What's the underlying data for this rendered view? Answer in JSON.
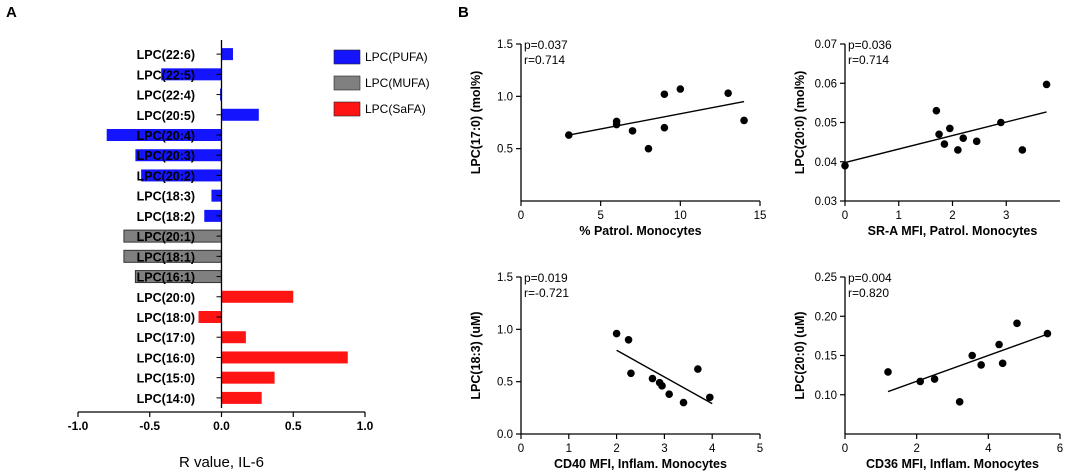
{
  "panels": {
    "a_label": "A",
    "b_label": "B"
  },
  "colors": {
    "pufa": "#1414ff",
    "mufa": "#808080",
    "safa": "#ff1414",
    "axis": "#000000"
  },
  "chart_data": [
    {
      "id": "A",
      "type": "bar",
      "orientation": "horizontal",
      "xlabel": "R value, IL-6",
      "xlim": [
        -1.0,
        1.0
      ],
      "xticks": [
        -1.0,
        -0.5,
        0.0,
        0.5,
        1.0
      ],
      "xtick_labels": [
        "-1.0",
        "-0.5",
        "0.0",
        "0.5",
        "1.0"
      ],
      "legend": [
        {
          "label": "LPC(PUFA)",
          "group": "pufa"
        },
        {
          "label": "LPC(MUFA)",
          "group": "mufa"
        },
        {
          "label": "LPC(SaFA)",
          "group": "safa"
        }
      ],
      "categories": [
        "LPC(22:6)",
        "LPC(22:5)",
        "LPC(22:4)",
        "LPC(20:5)",
        "LPC(20:4)",
        "LPC(20:3)",
        "LPC(20:2)",
        "LPC(18:3)",
        "LPC(18:2)",
        "LPC(20:1)",
        "LPC(18:1)",
        "LPC(16:1)",
        "LPC(20:0)",
        "LPC(18:0)",
        "LPC(17:0)",
        "LPC(16:0)",
        "LPC(15:0)",
        "LPC(14:0)"
      ],
      "values": [
        0.08,
        -0.42,
        -0.01,
        0.26,
        -0.8,
        -0.6,
        -0.56,
        -0.07,
        -0.12,
        -0.68,
        -0.68,
        -0.6,
        0.5,
        -0.16,
        0.17,
        0.88,
        0.37,
        0.28
      ],
      "groups": [
        "pufa",
        "pufa",
        "pufa",
        "pufa",
        "pufa",
        "pufa",
        "pufa",
        "pufa",
        "pufa",
        "mufa",
        "mufa",
        "mufa",
        "safa",
        "safa",
        "safa",
        "safa",
        "safa",
        "safa"
      ]
    },
    {
      "id": "B1",
      "type": "scatter",
      "xlabel": "% Patrol. Monocytes",
      "ylabel": "LPC(17:0) (mol%)",
      "xlim": [
        0,
        15
      ],
      "ylim": [
        0.0,
        1.5
      ],
      "xticks": [
        0,
        5,
        10,
        15
      ],
      "xtick_labels": [
        "0",
        "5",
        "10",
        "15"
      ],
      "yticks": [
        0.5,
        1.0,
        1.5
      ],
      "ytick_labels": [
        "0.5",
        "1.0",
        "1.5"
      ],
      "annotations": [
        "p=0.037",
        "r=0.714"
      ],
      "x": [
        3,
        6,
        6,
        7,
        8,
        9,
        9,
        10,
        13,
        14
      ],
      "y": [
        0.63,
        0.73,
        0.76,
        0.67,
        0.5,
        0.7,
        1.02,
        1.07,
        1.03,
        0.77
      ],
      "fit": [
        [
          3,
          0.63
        ],
        [
          14,
          0.95
        ]
      ]
    },
    {
      "id": "B2",
      "type": "scatter",
      "xlabel": "SR-A MFI, Patrol. Monocytes",
      "ylabel": "LPC(20:0) (mol%)",
      "xlim": [
        0,
        4
      ],
      "ylim": [
        0.03,
        0.07
      ],
      "xticks": [
        0,
        1,
        2,
        3
      ],
      "xtick_labels": [
        "0",
        "1",
        "2",
        "3"
      ],
      "yticks": [
        0.03,
        0.04,
        0.05,
        0.06,
        0.07
      ],
      "ytick_labels": [
        "0.03",
        "0.04",
        "0.05",
        "0.06",
        "0.07"
      ],
      "annotations": [
        "p=0.036",
        "r=0.714"
      ],
      "x": [
        0.0,
        1.7,
        1.75,
        1.85,
        1.95,
        2.1,
        2.2,
        2.45,
        2.9,
        3.3,
        3.75
      ],
      "y": [
        0.039,
        0.053,
        0.047,
        0.0445,
        0.0485,
        0.043,
        0.046,
        0.0452,
        0.05,
        0.043,
        0.0597
      ],
      "fit": [
        [
          0.0,
          0.0398
        ],
        [
          3.75,
          0.0527
        ]
      ]
    },
    {
      "id": "B3",
      "type": "scatter",
      "xlabel": "CD40 MFI, Inflam. Monocytes",
      "ylabel": "LPC(18:3) (uM)",
      "xlim": [
        0,
        5
      ],
      "ylim": [
        0.0,
        1.5
      ],
      "xticks": [
        0,
        1,
        2,
        3,
        4,
        5
      ],
      "xtick_labels": [
        "0",
        "1",
        "2",
        "3",
        "4",
        "5"
      ],
      "yticks": [
        0.0,
        0.5,
        1.0,
        1.5
      ],
      "ytick_labels": [
        "0.0",
        "0.5",
        "1.0",
        "1.5"
      ],
      "annotations": [
        "p=0.019",
        "r=-0.721"
      ],
      "x": [
        2.0,
        2.25,
        2.3,
        2.75,
        2.9,
        2.95,
        3.1,
        3.4,
        3.7,
        3.95
      ],
      "y": [
        0.96,
        0.9,
        0.58,
        0.53,
        0.49,
        0.46,
        0.38,
        0.3,
        0.62,
        0.35
      ],
      "fit": [
        [
          2.0,
          0.8
        ],
        [
          4.0,
          0.29
        ]
      ]
    },
    {
      "id": "B4",
      "type": "scatter",
      "xlabel": "CD36 MFI, Inflam. Monocytes",
      "ylabel": "LPC(20:0) (uM)",
      "xlim": [
        0,
        6
      ],
      "ylim": [
        0.05,
        0.25
      ],
      "xticks": [
        0,
        2,
        4,
        6
      ],
      "xtick_labels": [
        "0",
        "2",
        "4",
        "6"
      ],
      "yticks": [
        0.1,
        0.15,
        0.2,
        0.25
      ],
      "ytick_labels": [
        "0.10",
        "0.15",
        "0.20",
        "0.25"
      ],
      "annotations": [
        "p=0.004",
        "r=0.820"
      ],
      "x": [
        1.2,
        2.1,
        2.5,
        3.2,
        3.55,
        3.8,
        4.3,
        4.4,
        4.8,
        5.65
      ],
      "y": [
        0.129,
        0.117,
        0.12,
        0.091,
        0.15,
        0.138,
        0.164,
        0.14,
        0.191,
        0.178
      ],
      "fit": [
        [
          1.2,
          0.104
        ],
        [
          5.7,
          0.178
        ]
      ]
    }
  ]
}
